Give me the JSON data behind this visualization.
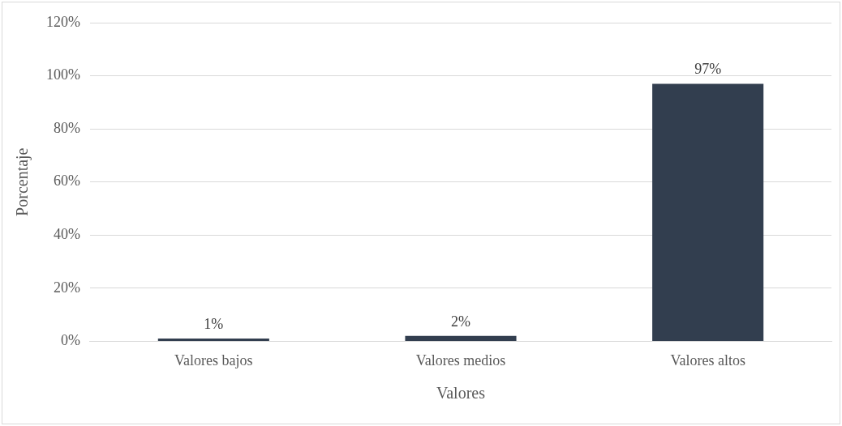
{
  "chart_data": {
    "type": "bar",
    "xlabel": "Valores",
    "ylabel": "Porcentaje",
    "categories": [
      "Valores bajos",
      "Valores medios",
      "Valores altos"
    ],
    "values": [
      1,
      2,
      97
    ],
    "color": "#323e4f",
    "value_labels": [
      "1%",
      "2%",
      "97%"
    ],
    "ylim": [
      0,
      120
    ],
    "yticks": [
      {
        "value": 0,
        "label": "0%"
      },
      {
        "value": 20,
        "label": "20%"
      },
      {
        "value": 40,
        "label": "40%"
      },
      {
        "value": 60,
        "label": "60%"
      },
      {
        "value": 80,
        "label": "80%"
      },
      {
        "value": 100,
        "label": "100%"
      },
      {
        "value": 120,
        "label": "120%"
      }
    ],
    "grid": "y",
    "legend": false
  }
}
